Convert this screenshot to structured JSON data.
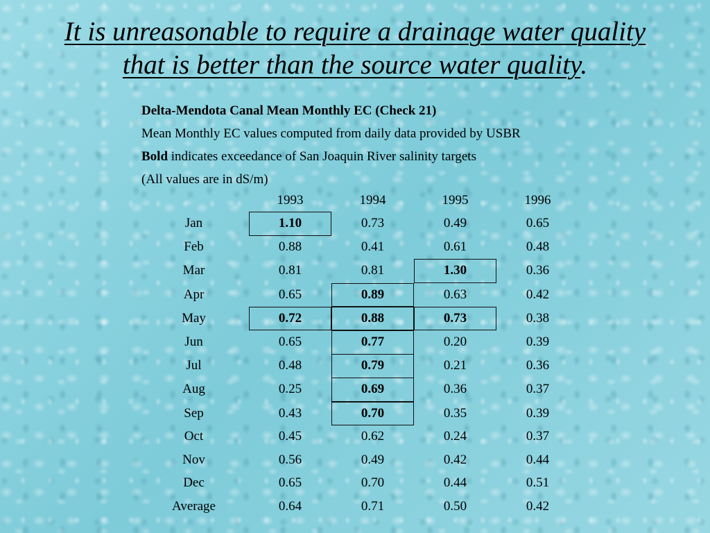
{
  "title": {
    "line1": "It is unreasonable to require a drainage water quality",
    "line2": "that is better than the source water quality",
    "line2_end": "."
  },
  "info": {
    "heading": "Delta-Mendota Canal Mean Monthly EC (Check 21)",
    "source_note": "Mean Monthly EC values computed from daily data provided by USBR",
    "bold_word": "Bold",
    "bold_note": " indicates exceedance of San Joaquin River salinity targets",
    "units_note": "(All values are in dS/m)"
  },
  "table": {
    "columns": [
      "1993",
      "1994",
      "1995",
      "1996"
    ],
    "rows": [
      {
        "month": "Jan",
        "values": [
          "1.10",
          "0.73",
          "0.49",
          "0.65"
        ],
        "bold": [
          true,
          false,
          false,
          false
        ]
      },
      {
        "month": "Feb",
        "values": [
          "0.88",
          "0.41",
          "0.61",
          "0.48"
        ],
        "bold": [
          false,
          false,
          false,
          false
        ]
      },
      {
        "month": "Mar",
        "values": [
          "0.81",
          "0.81",
          "1.30",
          "0.36"
        ],
        "bold": [
          false,
          false,
          true,
          false
        ]
      },
      {
        "month": "Apr",
        "values": [
          "0.65",
          "0.89",
          "0.63",
          "0.42"
        ],
        "bold": [
          false,
          true,
          false,
          false
        ]
      },
      {
        "month": "May",
        "values": [
          "0.72",
          "0.88",
          "0.73",
          "0.38"
        ],
        "bold": [
          true,
          true,
          true,
          false
        ]
      },
      {
        "month": "Jun",
        "values": [
          "0.65",
          "0.77",
          "0.20",
          "0.39"
        ],
        "bold": [
          false,
          true,
          false,
          false
        ]
      },
      {
        "month": "Jul",
        "values": [
          "0.48",
          "0.79",
          "0.21",
          "0.36"
        ],
        "bold": [
          false,
          true,
          false,
          false
        ]
      },
      {
        "month": "Aug",
        "values": [
          "0.25",
          "0.69",
          "0.36",
          "0.37"
        ],
        "bold": [
          false,
          true,
          false,
          false
        ]
      },
      {
        "month": "Sep",
        "values": [
          "0.43",
          "0.70",
          "0.35",
          "0.39"
        ],
        "bold": [
          false,
          true,
          false,
          false
        ]
      },
      {
        "month": "Oct",
        "values": [
          "0.45",
          "0.62",
          "0.24",
          "0.37"
        ],
        "bold": [
          false,
          false,
          false,
          false
        ]
      },
      {
        "month": "Nov",
        "values": [
          "0.56",
          "0.49",
          "0.42",
          "0.44"
        ],
        "bold": [
          false,
          false,
          false,
          false
        ]
      },
      {
        "month": "Dec",
        "values": [
          "0.65",
          "0.70",
          "0.44",
          "0.51"
        ],
        "bold": [
          false,
          false,
          false,
          false
        ]
      },
      {
        "month": "Average",
        "values": [
          "0.64",
          "0.71",
          "0.50",
          "0.42"
        ],
        "bold": [
          false,
          false,
          false,
          false
        ]
      }
    ]
  }
}
